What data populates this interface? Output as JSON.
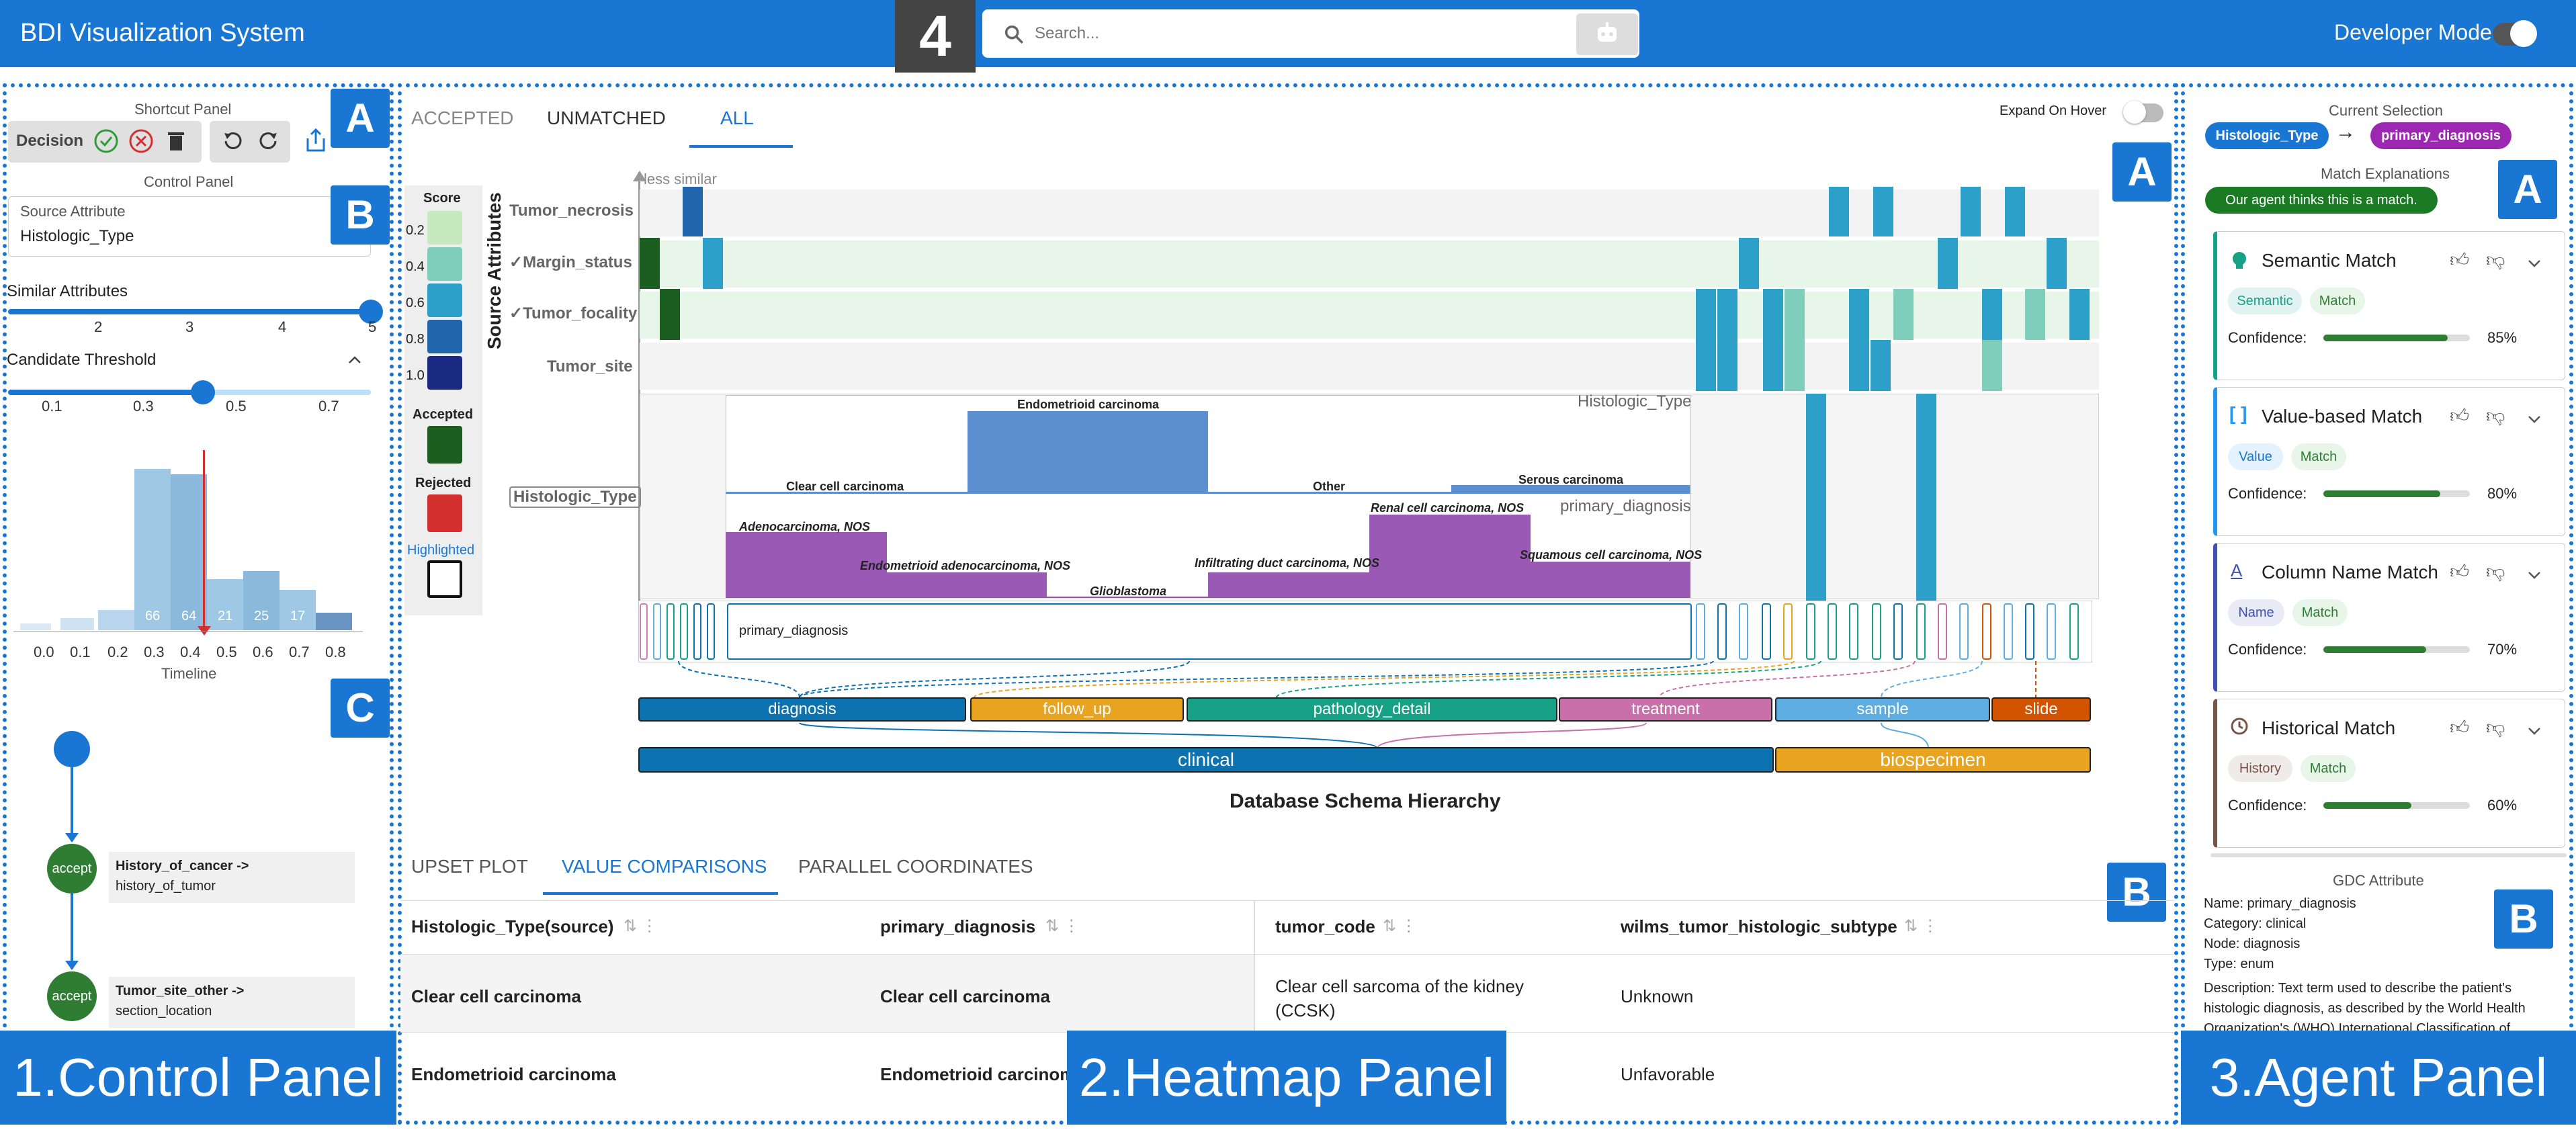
{
  "app": {
    "title": "BDI Visualization System",
    "figure_number": "4",
    "developer_mode": "Developer Mode"
  },
  "search": {
    "placeholder": "Search..."
  },
  "left": {
    "shortcut_title": "Shortcut Panel",
    "decision": "Decision",
    "control_title": "Control Panel",
    "source_attr_label": "Source Attribute",
    "source_attr_value": "Histologic_Type",
    "similar_label": "Similar Attributes",
    "similar_ticks": [
      "2",
      "3",
      "4",
      "5"
    ],
    "similar_value": 5,
    "threshold_label": "Candidate Threshold",
    "threshold_ticks": [
      "0.1",
      "0.3",
      "0.5",
      "0.7"
    ],
    "threshold_value": 0.4,
    "hist_ticks": [
      "0.0",
      "0.1",
      "0.2",
      "0.3",
      "0.4",
      "0.5",
      "0.6",
      "0.7",
      "0.8"
    ],
    "hist_labels": [
      "66",
      "64",
      "21",
      "25",
      "17"
    ],
    "timeline_title": "Timeline",
    "timeline": [
      {
        "action": "accept",
        "line1": "History_of_cancer ->",
        "line2": "history_of_tumor"
      },
      {
        "action": "accept",
        "line1": "Tumor_site_other ->",
        "line2": "section_location"
      }
    ],
    "panel_label": "1.Control Panel"
  },
  "mid": {
    "tabs": [
      "ACCEPTED",
      "UNMATCHED",
      "ALL"
    ],
    "expand_label": "Expand On Hover",
    "legend": {
      "score_title": "Score",
      "scores": [
        "0.2",
        "0.4",
        "0.6",
        "0.8",
        "1.0"
      ],
      "score_colors": [
        "#c7e9c0",
        "#7fcdbb",
        "#2ca0c8",
        "#2166ac",
        "#1a2a80"
      ],
      "accepted": "Accepted",
      "rejected": "Rejected",
      "highlighted": "Highlighted"
    },
    "y_axis": "Source Attributes",
    "less_similar": "less similar",
    "rows": [
      "Tumor_necrosis",
      "✓Margin_status",
      "✓Tumor_focality",
      "Tumor_site",
      "Histologic_Type"
    ],
    "expanded": {
      "source_label": "Histologic_Type",
      "target_label": "primary_diagnosis",
      "source_bars": [
        "Clear cell carcinoma",
        "Endometrioid carcinoma",
        "Other",
        "Serous carcinoma"
      ],
      "target_bars": [
        "Adenocarcinoma, NOS",
        "Endometrioid adenocarcinoma, NOS",
        "Glioblastoma",
        "Infiltrating duct carcinoma, NOS",
        "Renal cell carcinoma, NOS",
        "Squamous cell carcinoma, NOS"
      ]
    },
    "column_label": "primary_diagnosis",
    "categories": [
      "diagnosis",
      "follow_up",
      "pathology_detail",
      "treatment",
      "sample",
      "slide"
    ],
    "category_colors": [
      "#0d72b0",
      "#e8a321",
      "#16a085",
      "#c96fa9",
      "#5dade2",
      "#d35400"
    ],
    "groups": [
      "clinical",
      "biospecimen"
    ],
    "x_axis": "Database Schema Hierarchy",
    "bottom_tabs": [
      "UPSET PLOT",
      "VALUE COMPARISONS",
      "PARALLEL COORDINATES"
    ],
    "table": {
      "headers": [
        "Histologic_Type(source)",
        "primary_diagnosis",
        "tumor_code",
        "wilms_tumor_histologic_subtype"
      ],
      "rows": [
        [
          "Clear cell carcinoma",
          "Clear cell carcinoma",
          "Clear cell sarcoma of the kidney (CCSK)",
          "Unknown"
        ],
        [
          "Endometrioid carcinoma",
          "Endometrioid carcinoma",
          "",
          "Unfavorable"
        ]
      ]
    },
    "panel_label": "2.Heatmap Panel"
  },
  "right": {
    "current_selection": "Current Selection",
    "source": "Histologic_Type",
    "target": "primary_diagnosis",
    "explanations_title": "Match Explanations",
    "agent_note": "Our agent thinks this is a match.",
    "cards": [
      {
        "title": "Semantic Match",
        "tags": [
          "Semantic",
          "Match"
        ],
        "confidence": "85%",
        "value": 0.85,
        "color": "#16a085"
      },
      {
        "title": "Value-based Match",
        "tags": [
          "Value",
          "Match"
        ],
        "confidence": "80%",
        "value": 0.8,
        "color": "#2196f3"
      },
      {
        "title": "Column Name Match",
        "tags": [
          "Name",
          "Match"
        ],
        "confidence": "70%",
        "value": 0.7,
        "color": "#3f51b5"
      },
      {
        "title": "Historical Match",
        "tags": [
          "History",
          "Match"
        ],
        "confidence": "60%",
        "value": 0.6,
        "color": "#795548"
      }
    ],
    "confidence_label": "Confidence:",
    "gdc_title": "GDC Attribute",
    "gdc": {
      "name": "Name: primary_diagnosis",
      "category": "Category: clinical",
      "node": "Node: diagnosis",
      "type": "Type: enum",
      "description": "Description: Text term used to describe the patient's histologic diagnosis, as described by the World Health Organization's (WHO) International Classification of"
    },
    "panel_label": "3.Agent Panel"
  }
}
